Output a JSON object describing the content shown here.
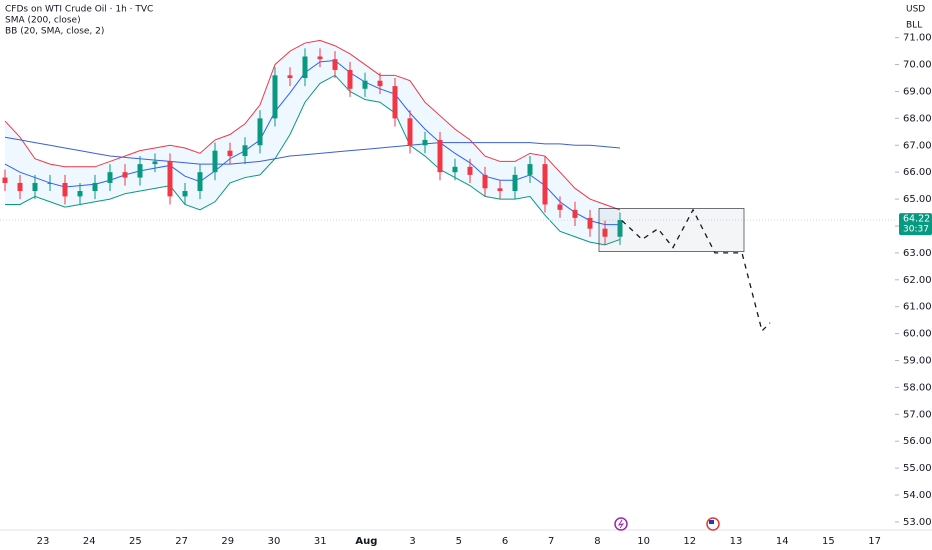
{
  "chart_data": {
    "type": "candlestick",
    "title": "CFDs on WTI Crude Oil · 1h · TVC",
    "indicators": [
      "SMA (200, close)",
      "BB (20, SMA, close, 2)"
    ],
    "currency": "USD",
    "unit": "BLL",
    "countdown": "30:37",
    "categories": [
      "23",
      "24",
      "25",
      "27",
      "29",
      "30",
      "31",
      "Aug",
      "3",
      "5",
      "6",
      "7",
      "8",
      "10",
      "12",
      "13",
      "14",
      "15",
      "17"
    ],
    "open": [
      65.8,
      65.6,
      65.3,
      65.6,
      65.6,
      65.1,
      65.3,
      65.6,
      66.0,
      65.8,
      66.3,
      66.4,
      65.1,
      65.3,
      66.0,
      66.8,
      66.6,
      67.0,
      68.0,
      69.6,
      69.5,
      70.3,
      70.2,
      69.8,
      69.1,
      69.4,
      69.2,
      68.0,
      67.0,
      67.2,
      66.0,
      66.2,
      65.9,
      65.4,
      65.3,
      65.9,
      66.3,
      64.8,
      64.6,
      64.3,
      63.9,
      63.6
    ],
    "high": [
      66.1,
      65.9,
      65.9,
      65.9,
      65.9,
      65.6,
      65.9,
      66.3,
      66.3,
      66.6,
      66.7,
      66.7,
      65.6,
      66.3,
      67.1,
      67.1,
      67.3,
      68.3,
      69.9,
      69.9,
      70.6,
      70.6,
      70.5,
      70.1,
      69.7,
      69.7,
      69.5,
      68.3,
      67.5,
      67.5,
      66.5,
      66.5,
      66.2,
      65.7,
      66.2,
      66.6,
      66.6,
      65.1,
      64.9,
      64.6,
      64.2,
      64.5
    ],
    "low": [
      65.3,
      65.0,
      65.0,
      65.3,
      64.8,
      64.8,
      65.0,
      65.3,
      65.5,
      65.5,
      66.0,
      64.8,
      64.8,
      65.0,
      65.7,
      66.3,
      66.3,
      66.7,
      67.7,
      69.2,
      69.2,
      69.9,
      69.5,
      68.8,
      68.8,
      68.9,
      67.7,
      66.7,
      66.7,
      65.7,
      65.7,
      65.6,
      65.1,
      65.0,
      65.0,
      65.6,
      64.5,
      64.3,
      64.0,
      63.6,
      63.3,
      63.3
    ],
    "close": [
      65.6,
      65.3,
      65.6,
      65.6,
      65.1,
      65.3,
      65.6,
      66.0,
      65.8,
      66.3,
      66.4,
      65.1,
      65.3,
      66.0,
      66.8,
      66.6,
      67.0,
      68.0,
      69.6,
      69.5,
      70.3,
      70.2,
      69.8,
      69.1,
      69.4,
      69.2,
      68.0,
      67.0,
      67.2,
      66.0,
      66.2,
      65.9,
      65.4,
      65.3,
      65.9,
      66.3,
      64.8,
      64.6,
      64.3,
      63.9,
      63.6,
      64.22
    ],
    "sma": [
      67.3,
      67.2,
      67.1,
      67.0,
      66.9,
      66.8,
      66.7,
      66.6,
      66.55,
      66.5,
      66.45,
      66.4,
      66.35,
      66.3,
      66.3,
      66.3,
      66.35,
      66.4,
      66.5,
      66.6,
      66.65,
      66.7,
      66.75,
      66.8,
      66.85,
      66.9,
      66.95,
      67.0,
      67.05,
      67.1,
      67.1,
      67.1,
      67.1,
      67.1,
      67.1,
      67.1,
      67.05,
      67.05,
      67.0,
      67.0,
      66.95,
      66.9
    ],
    "bb_upper": [
      67.9,
      67.3,
      66.5,
      66.3,
      66.2,
      66.2,
      66.2,
      66.4,
      66.6,
      66.8,
      66.9,
      67.0,
      66.9,
      66.7,
      67.2,
      67.4,
      67.8,
      68.5,
      70.0,
      70.5,
      70.8,
      70.9,
      70.7,
      70.4,
      70.0,
      69.6,
      69.6,
      69.4,
      68.6,
      68.1,
      67.6,
      67.2,
      66.6,
      66.4,
      66.4,
      66.7,
      66.6,
      66.0,
      65.4,
      65.0,
      64.8,
      64.6
    ],
    "bb_middle": [
      66.3,
      66.0,
      65.8,
      65.6,
      65.45,
      65.5,
      65.55,
      65.7,
      65.9,
      66.05,
      66.15,
      66.25,
      65.85,
      65.65,
      66.05,
      66.5,
      66.8,
      67.2,
      68.25,
      68.95,
      69.7,
      70.1,
      70.15,
      69.7,
      69.35,
      69.1,
      68.9,
      68.2,
      67.6,
      67.1,
      66.7,
      66.35,
      65.85,
      65.7,
      65.7,
      65.9,
      65.5,
      64.9,
      64.5,
      64.2,
      64.05,
      64.05
    ],
    "bb_lower": [
      64.8,
      64.8,
      65.1,
      64.9,
      64.7,
      64.8,
      64.9,
      65.0,
      65.2,
      65.3,
      65.4,
      65.5,
      64.8,
      64.6,
      64.9,
      65.6,
      65.8,
      65.9,
      66.5,
      67.4,
      68.6,
      69.3,
      69.6,
      69.0,
      68.7,
      68.6,
      68.2,
      67.0,
      66.6,
      66.1,
      65.8,
      65.5,
      65.1,
      65.0,
      65.0,
      65.1,
      64.4,
      63.8,
      63.6,
      63.4,
      63.3,
      63.5
    ],
    "box": [
      64.65,
      63.05
    ],
    "projection": [
      64.2,
      63.5,
      63.9,
      63.2,
      64.6,
      63.0,
      63.0,
      60.1,
      60.4
    ],
    "ylim": [
      52.7,
      72.4
    ],
    "yticks": [
      {
        "value": 53,
        "label": "53.00"
      },
      {
        "value": 54,
        "label": "54.00"
      },
      {
        "value": 55,
        "label": "55.00"
      },
      {
        "value": 56,
        "label": "56.00"
      },
      {
        "value": 57,
        "label": "57.00"
      },
      {
        "value": 58,
        "label": "58.00"
      },
      {
        "value": 59,
        "label": "59.00"
      },
      {
        "value": 60,
        "label": "60.00"
      },
      {
        "value": 61,
        "label": "61.00"
      },
      {
        "value": 62,
        "label": "62.00"
      },
      {
        "value": 63,
        "label": "63.00"
      },
      {
        "value": 64,
        "label": "64.00"
      },
      {
        "value": 65,
        "label": "65.00"
      },
      {
        "value": 66,
        "label": "66.00"
      },
      {
        "value": 67,
        "label": "67.00"
      },
      {
        "value": 68,
        "label": "68.00"
      },
      {
        "value": 69,
        "label": "69.00"
      },
      {
        "value": 70,
        "label": "70.00"
      },
      {
        "value": 71,
        "label": "71.00"
      }
    ],
    "colors": {
      "up": "#089981",
      "down": "#f23645",
      "sma": "#3d5fd4",
      "bb_upper": "#f23645",
      "bb_middle": "#2962ff",
      "bb_lower": "#089981"
    }
  }
}
